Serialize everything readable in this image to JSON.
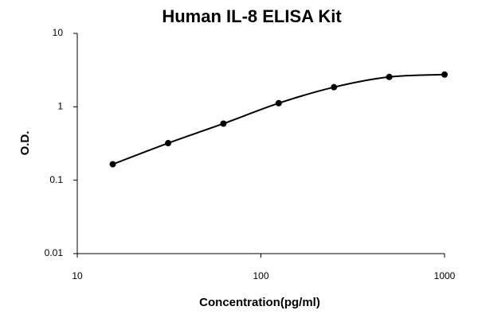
{
  "chart_data": {
    "type": "scatter",
    "title": "Human IL-8 ELISA Kit",
    "x_label": "Concentration(pg/ml)",
    "y_label": "O.D.",
    "x": [
      15.6,
      31.25,
      62.5,
      125,
      250,
      500,
      1000
    ],
    "values": [
      0.165,
      0.32,
      0.59,
      1.12,
      1.85,
      2.55,
      2.75
    ],
    "color": "#000000",
    "xscale": "log",
    "yscale": "log",
    "xlim": [
      10,
      1000
    ],
    "ylim": [
      0.01,
      10
    ],
    "xticks": [
      10,
      100,
      1000
    ],
    "yticks": [
      0.01,
      0.1,
      1,
      10
    ]
  }
}
